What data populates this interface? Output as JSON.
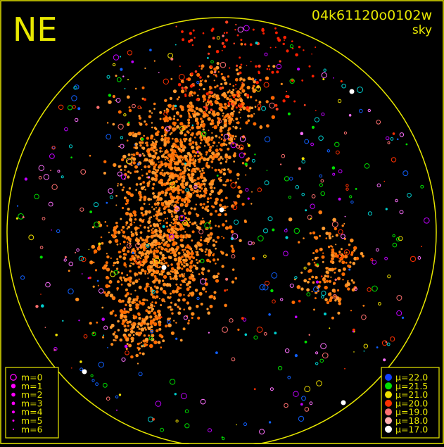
{
  "corner_label": "NE",
  "header": {
    "id": "04k61120o0102w",
    "mode": "sky"
  },
  "colors": {
    "frame": "#e8e800",
    "background": "#000000",
    "magnitude_key": "#ff00ff",
    "text": "#e8e800"
  },
  "magnitude_legend": {
    "items": [
      {
        "label": "m=0",
        "style": "ring"
      },
      {
        "label": "m=1",
        "style": "dot"
      },
      {
        "label": "m=2",
        "style": "dot"
      },
      {
        "label": "m=3",
        "style": "dot"
      },
      {
        "label": "m=4",
        "style": "dot"
      },
      {
        "label": "m=5",
        "style": "dot"
      },
      {
        "label": "m=6",
        "style": "dot"
      }
    ]
  },
  "brightness_legend": {
    "items": [
      {
        "label": "μ=22.0",
        "color": "#1040ff"
      },
      {
        "label": "μ=21.5",
        "color": "#00e000"
      },
      {
        "label": "μ=21.0",
        "color": "#f0e000"
      },
      {
        "label": "μ=20.0",
        "color": "#ff3000"
      },
      {
        "label": "μ=19.0",
        "color": "#ff7070"
      },
      {
        "label": "μ=18.0",
        "color": "#ffb0b0"
      },
      {
        "label": "μ=17.0",
        "color": "#ffffff"
      }
    ]
  }
}
